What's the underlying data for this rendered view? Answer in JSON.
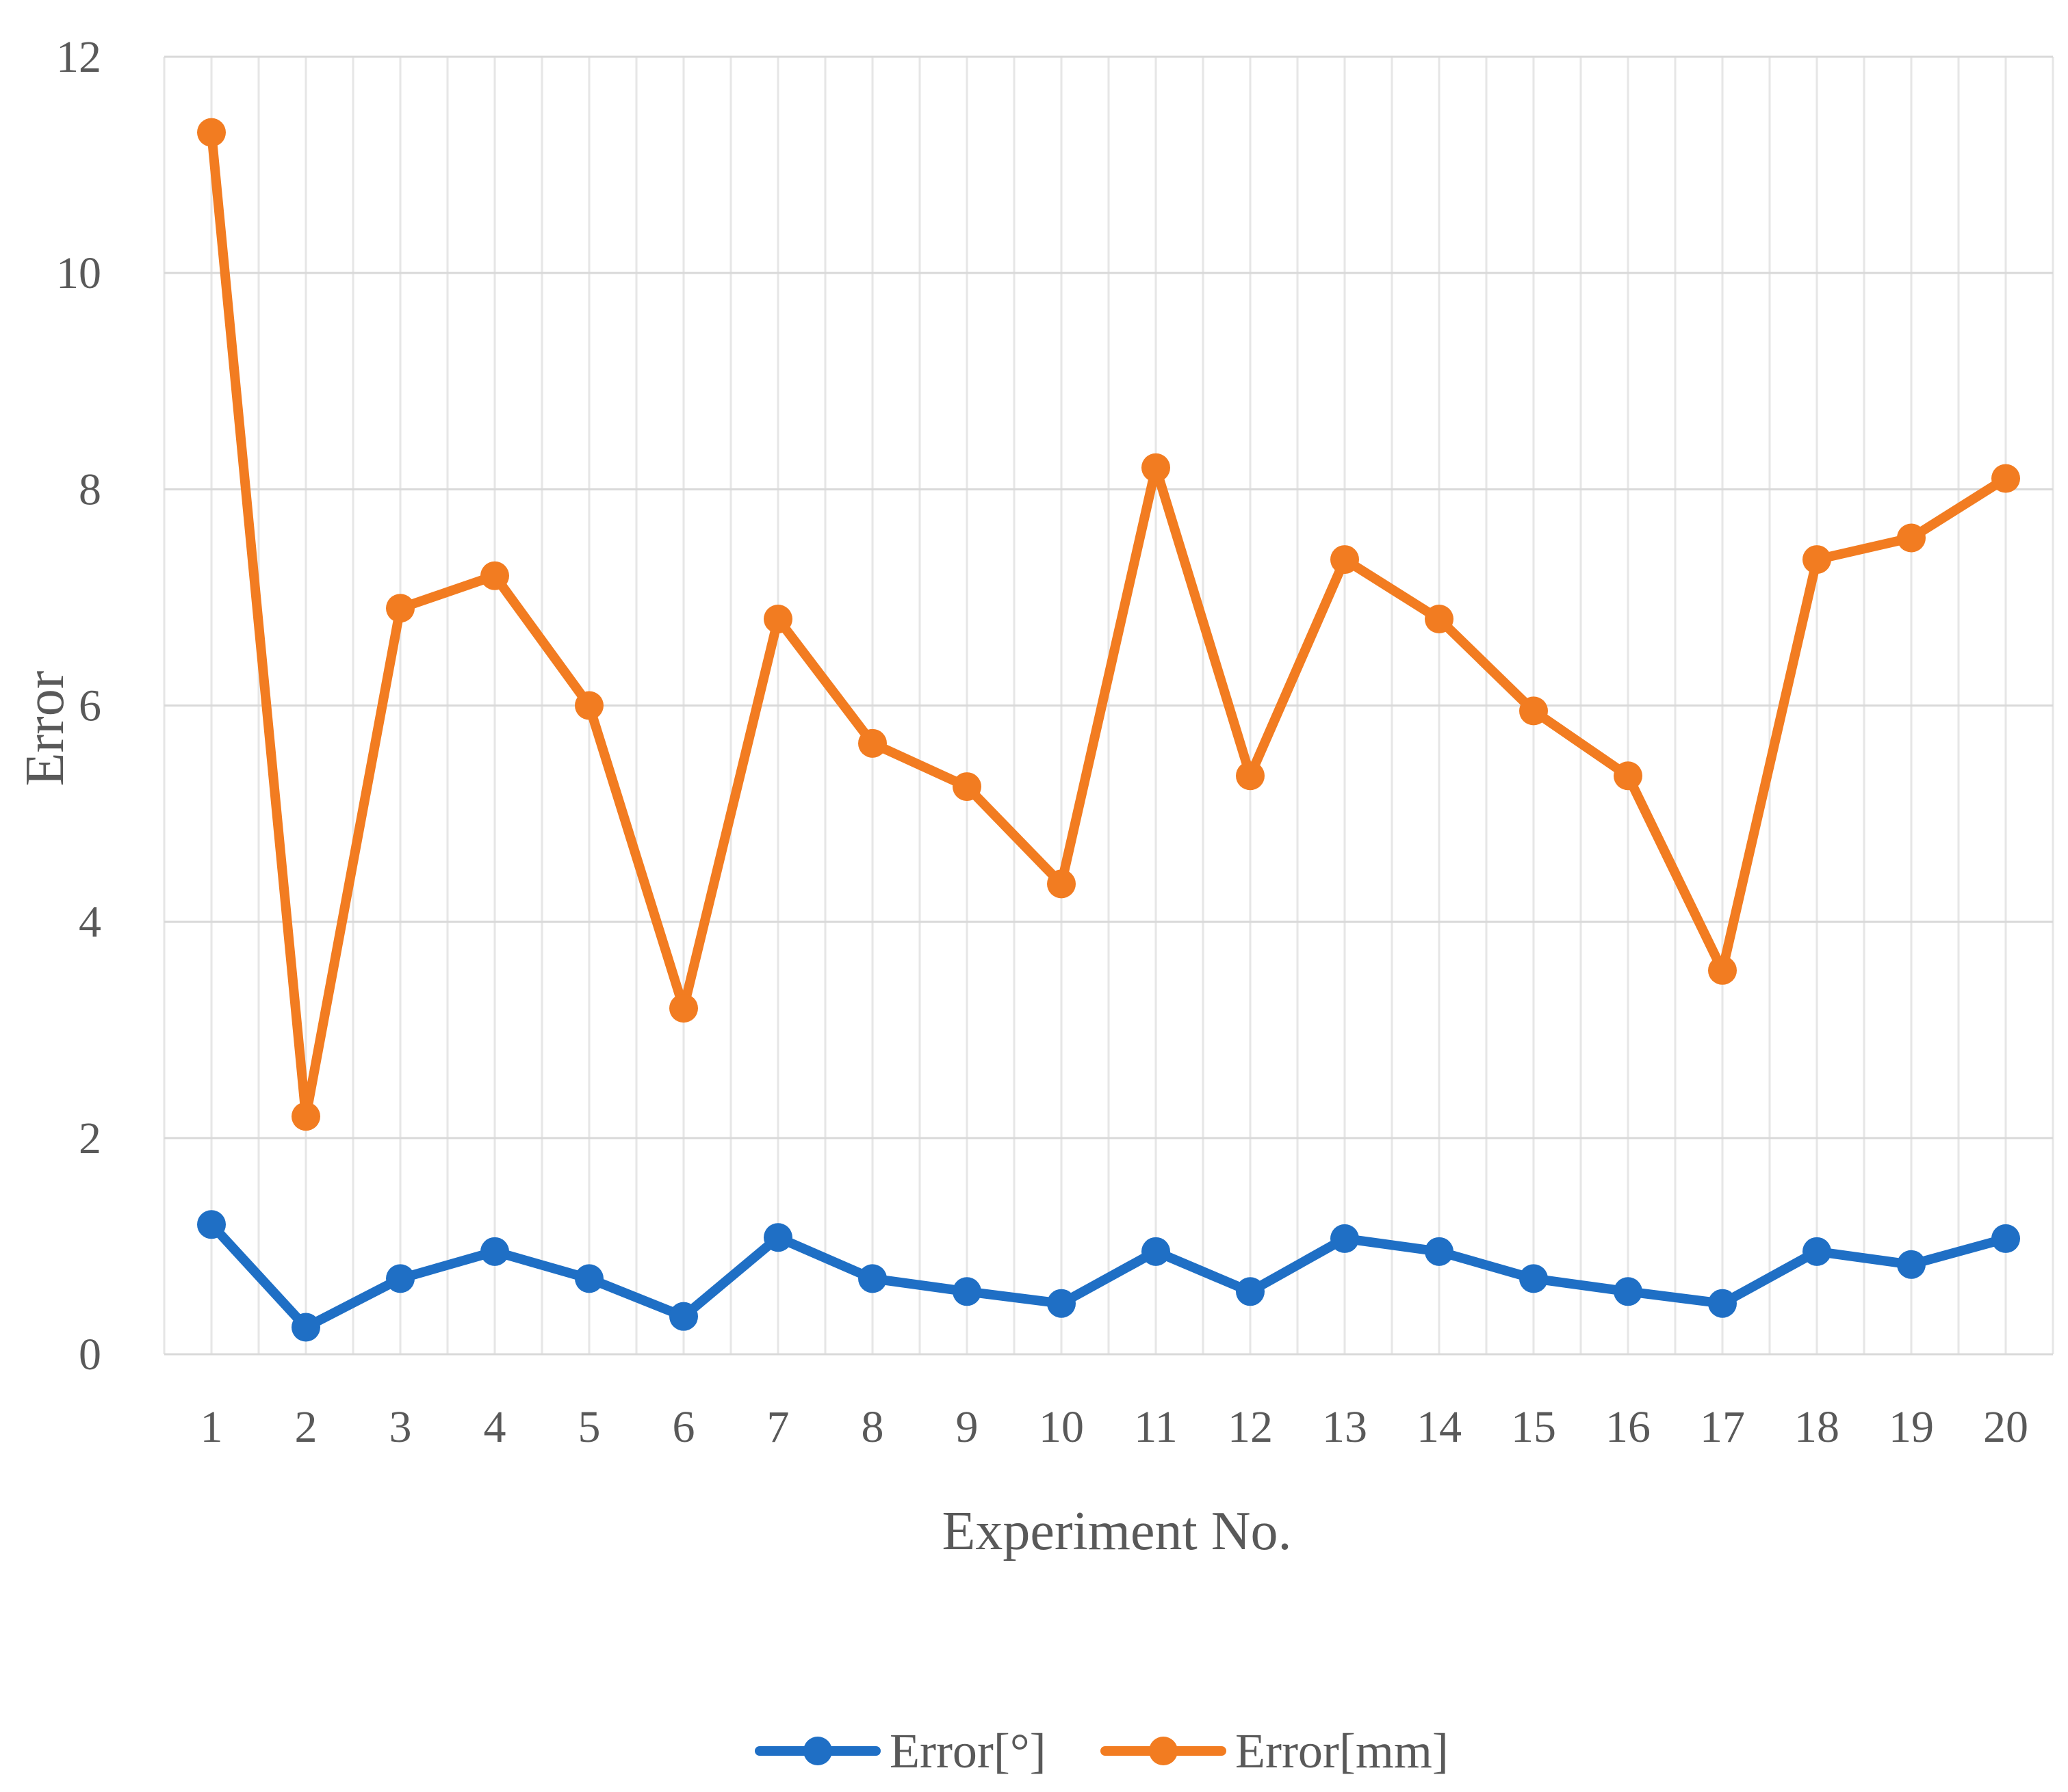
{
  "chart_data": {
    "type": "line",
    "title": "",
    "xlabel": "Experiment No.",
    "ylabel": "Error",
    "x": [
      1,
      2,
      3,
      4,
      5,
      6,
      7,
      8,
      9,
      10,
      11,
      12,
      13,
      14,
      15,
      16,
      17,
      18,
      19,
      20
    ],
    "ylim": [
      0,
      12
    ],
    "yticks": [
      0,
      2,
      4,
      6,
      8,
      10,
      12
    ],
    "grid": true,
    "legend_position": "bottom",
    "series": [
      {
        "name": "Error[°]",
        "color": "#1f6fc5",
        "values": [
          1.2,
          0.25,
          0.7,
          0.95,
          0.7,
          0.35,
          1.08,
          0.7,
          0.58,
          0.47,
          0.95,
          0.58,
          1.07,
          0.95,
          0.7,
          0.58,
          0.47,
          0.95,
          0.83,
          1.07
        ]
      },
      {
        "name": "Error[mm]",
        "color": "#f27c21",
        "values": [
          11.3,
          2.2,
          6.9,
          7.2,
          6.0,
          3.2,
          6.8,
          5.65,
          5.25,
          4.35,
          8.2,
          5.35,
          7.35,
          6.8,
          5.95,
          5.35,
          3.55,
          7.35,
          7.55,
          8.1
        ]
      }
    ]
  }
}
